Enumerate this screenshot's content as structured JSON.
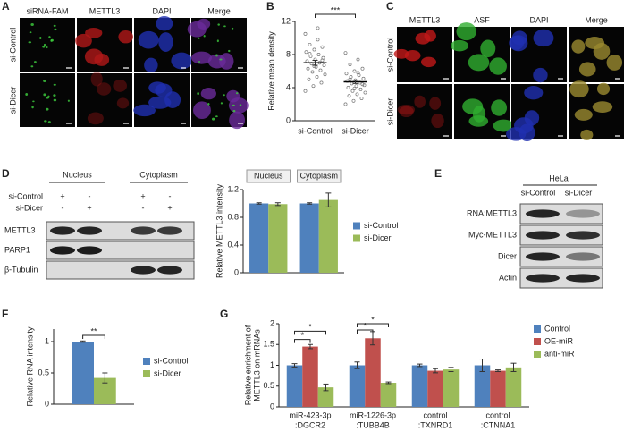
{
  "panel_labels": [
    "A",
    "B",
    "C",
    "D",
    "E",
    "F",
    "G"
  ],
  "panel_a": {
    "columns": [
      "siRNA-FAM",
      "METTL3",
      "DAPI",
      "Merge"
    ],
    "rows": [
      "si-Control",
      "si-Dicer"
    ]
  },
  "panel_c": {
    "columns": [
      "METTL3",
      "ASF",
      "DAPI",
      "Merge"
    ],
    "rows": [
      "si-Control",
      "si-Dicer"
    ]
  },
  "panel_d_blot": {
    "fractions": [
      "Nucleus",
      "Cytoplasm"
    ],
    "conditions": [
      {
        "name": "si-Control",
        "signs": [
          "+",
          "-",
          "+",
          "-"
        ]
      },
      {
        "name": "si-Dicer",
        "signs": [
          "-",
          "+",
          "-",
          "+"
        ]
      }
    ],
    "bands": [
      "METTL3",
      "PARP1",
      "β-Tubulin"
    ]
  },
  "panel_e_blot": {
    "cell_line": "HeLa",
    "conditions": [
      "si-Control",
      "si-Dicer"
    ],
    "bands": [
      "RNA:METTL3",
      "Myc-METTL3",
      "Dicer",
      "Actin"
    ]
  },
  "chart_data": [
    {
      "type": "dot",
      "ylabel": "Relative mean density",
      "categories": [
        "si-Control",
        "si-Dicer"
      ],
      "values": [
        7.0,
        4.7
      ],
      "errors": [
        0.3,
        0.2
      ],
      "color": "#777777",
      "points": [
        [
          10.5,
          9.8,
          9.2,
          8.9,
          8.6,
          8.3,
          8.0,
          7.8,
          7.6,
          7.4,
          7.2,
          7.0,
          6.9,
          6.7,
          6.5,
          6.3,
          6.1,
          5.9,
          5.6,
          5.3,
          5.0,
          4.6,
          4.2,
          3.6,
          11.2,
          8.1,
          7.3,
          6.6
        ],
        [
          8.2,
          7.4,
          6.8,
          6.3,
          6.0,
          5.7,
          5.5,
          5.3,
          5.1,
          4.9,
          4.8,
          4.6,
          4.5,
          4.3,
          4.2,
          4.0,
          3.8,
          3.6,
          3.4,
          3.2,
          3.0,
          2.7,
          2.4,
          2.0,
          5.8,
          5.0,
          4.4,
          3.9
        ]
      ],
      "ylim": [
        0,
        12
      ],
      "yticks": [
        0,
        4,
        8,
        12
      ],
      "annotations": [
        "***"
      ]
    },
    {
      "type": "bar",
      "ylabel": "Relative METTL3 intensity",
      "categories": [
        "Nucleus",
        "Cytoplasm"
      ],
      "series": [
        {
          "name": "si-Control",
          "color": "#4f81bd",
          "values": [
            1.0,
            1.0
          ],
          "errors": [
            0.01,
            0.01
          ]
        },
        {
          "name": "si-Dicer",
          "color": "#9bbb59",
          "values": [
            0.99,
            1.05
          ],
          "errors": [
            0.02,
            0.1
          ]
        }
      ],
      "ylim": [
        0,
        1.2
      ],
      "yticks": [
        0,
        0.4,
        0.8,
        1.2
      ],
      "legend": "right"
    },
    {
      "type": "bar",
      "ylabel": "Relative RNA intensity",
      "categories": [
        null
      ],
      "series": [
        {
          "name": "si-Control",
          "color": "#4f81bd",
          "values": [
            1.0
          ],
          "errors": [
            0.01
          ]
        },
        {
          "name": "si-Dicer",
          "color": "#9bbb59",
          "values": [
            0.42
          ],
          "errors": [
            0.08
          ]
        }
      ],
      "ylim": [
        0,
        1.2
      ],
      "yticks": [
        0,
        0.5,
        1
      ],
      "legend": "right",
      "annotations": [
        "**"
      ]
    },
    {
      "type": "bar",
      "ylabel": [
        "Relative enrichment of",
        "METTL3 on mRNAs"
      ],
      "categories": [
        [
          "miR-423-3p",
          ":DGCR2"
        ],
        [
          "miR-1226-3p",
          ":TUBB4B"
        ],
        [
          "control",
          ":TXNRD1"
        ],
        [
          "control",
          ":CTNNA1"
        ]
      ],
      "series": [
        {
          "name": "Control",
          "color": "#4f81bd",
          "values": [
            1.0,
            1.0,
            1.0,
            1.0
          ],
          "errors": [
            0.04,
            0.08,
            0.03,
            0.15
          ]
        },
        {
          "name": "OE-miR",
          "color": "#c0504d",
          "values": [
            1.45,
            1.65,
            0.87,
            0.87
          ],
          "errors": [
            0.05,
            0.16,
            0.05,
            0.02
          ]
        },
        {
          "name": "anti-miR",
          "color": "#9bbb59",
          "values": [
            0.47,
            0.58,
            0.9,
            0.95
          ],
          "errors": [
            0.08,
            0.02,
            0.05,
            0.1
          ]
        }
      ],
      "ylim": [
        0,
        2
      ],
      "yticks": [
        0,
        0.5,
        1,
        1.5,
        2
      ],
      "legend": "right",
      "annotations": [
        "*",
        "*",
        "*",
        "*"
      ]
    }
  ]
}
